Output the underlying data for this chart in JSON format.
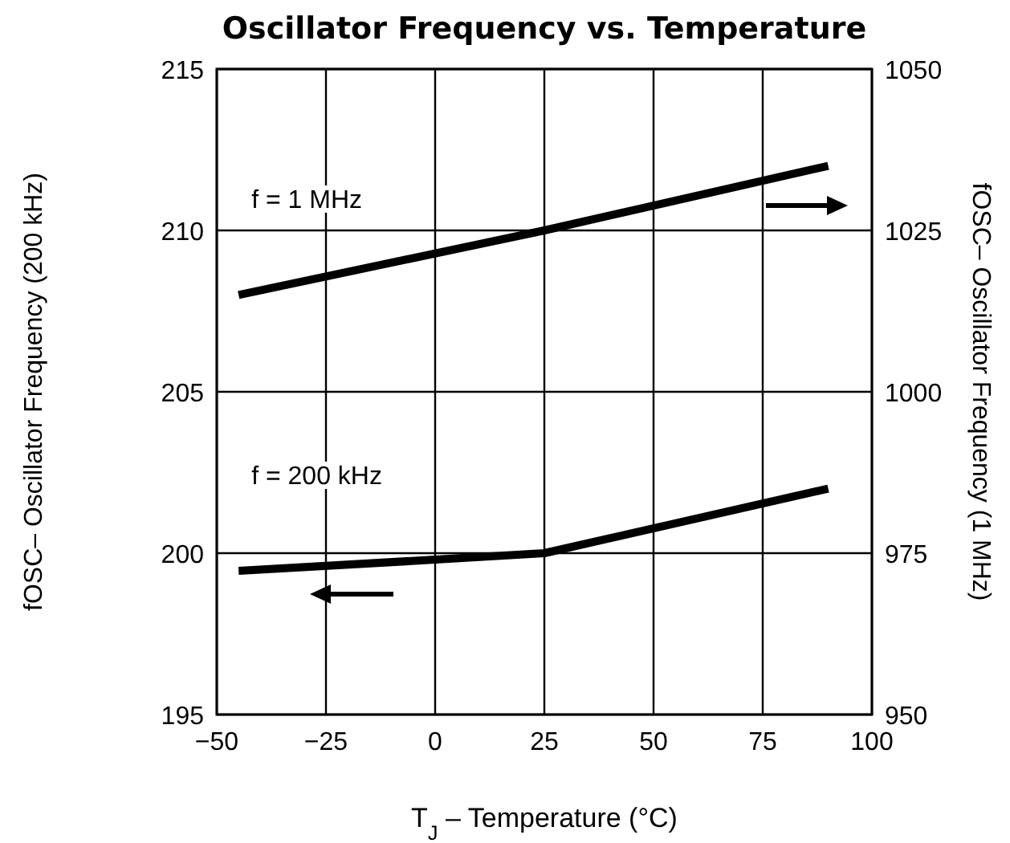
{
  "chart_data": {
    "type": "line",
    "title": "Oscillator Frequency vs. Temperature",
    "xlabel": "T$_{J}$ – Temperature (°C)",
    "ylabel": "fOSC– Oscillator Frequency (200 kHz)",
    "y2label": "fOSC– Oscillator Frequency (1 MHz)",
    "xlim": [
      -50,
      100
    ],
    "xticks": [
      {
        "value": -50,
        "label": "−50"
      },
      {
        "value": -25,
        "label": "−25"
      },
      0,
      25,
      50,
      75,
      100
    ],
    "ylim": [
      195,
      215
    ],
    "yticks": [
      195,
      200,
      205,
      210,
      215
    ],
    "y2lim": [
      950,
      1050
    ],
    "y2ticks": [
      950,
      975,
      1000,
      1025,
      1050
    ],
    "grid": true,
    "marker": "none",
    "line_style": "solid",
    "series": [
      {
        "name": "f = 1 MHz",
        "color": "#000000",
        "axis": "y2",
        "x": [
          -45,
          25,
          90
        ],
        "values": [
          1015,
          1025,
          1035
        ]
      },
      {
        "name": "f = 200 kHz",
        "color": "#000000",
        "x": [
          -45,
          0,
          25,
          90
        ],
        "values": [
          199.45,
          199.8,
          200,
          202
        ]
      }
    ]
  }
}
